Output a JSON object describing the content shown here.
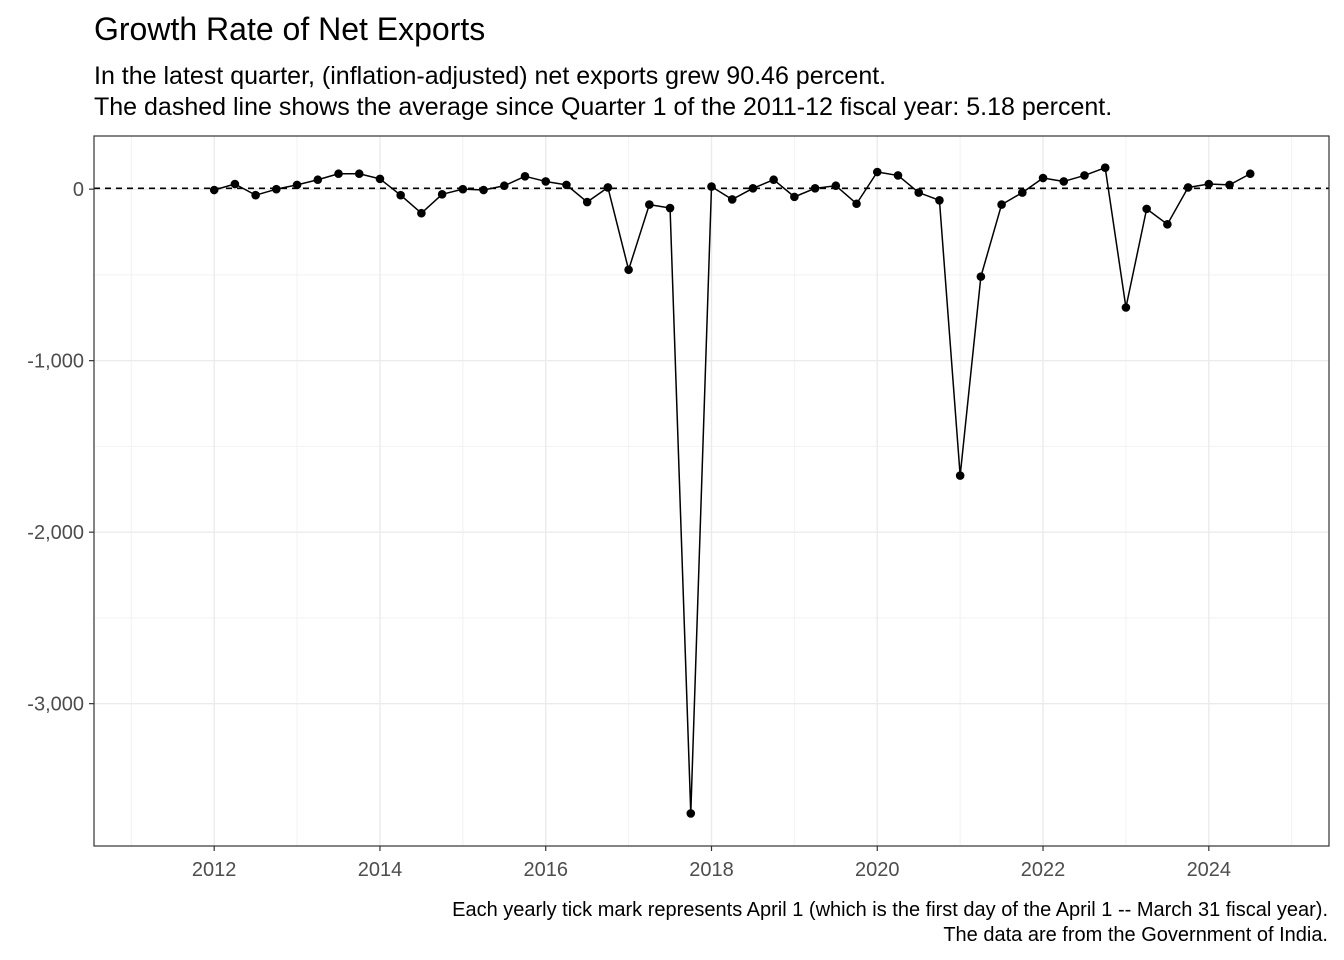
{
  "chart_data": {
    "type": "line",
    "title": "Growth Rate of Net Exports",
    "subtitle": [
      "In the latest quarter, (inflation-adjusted) net exports grew 90.46 percent.",
      "The dashed line shows the average since Quarter 1 of the 2011-12 fiscal year: 5.18 percent."
    ],
    "caption": [
      "Each yearly tick mark represents April 1 (which is the first day of the April 1 -- March 31 fiscal year).",
      "The data are from the Government of India."
    ],
    "xlabel": "",
    "ylabel": "",
    "x_ticks": [
      2012,
      2014,
      2016,
      2018,
      2020,
      2022,
      2024
    ],
    "y_ticks": [
      0,
      -1000,
      -2000,
      -3000
    ],
    "y_tick_labels": [
      "0",
      "-1,000",
      "-2,000",
      "-3,000"
    ],
    "xlim": [
      2010.55,
      2025.45
    ],
    "ylim": [
      -3830,
      310
    ],
    "average": 5.18,
    "grid": true,
    "legend": "none",
    "series": [
      {
        "x": [
          2012,
          2012.25,
          2012.5,
          2012.75,
          2013,
          2013.25,
          2013.5,
          2013.75,
          2014,
          2014.25,
          2014.5,
          2014.75,
          2015,
          2015.25,
          2015.5,
          2015.75,
          2016,
          2016.25,
          2016.5,
          2016.75,
          2017,
          2017.25,
          2017.5,
          2017.75,
          2018,
          2018.25,
          2018.5,
          2018.75,
          2019,
          2019.25,
          2019.5,
          2019.75,
          2020,
          2020.25,
          2020.5,
          2020.75,
          2021,
          2021.25,
          2021.5,
          2021.75,
          2022,
          2022.25,
          2022.5,
          2022.75,
          2023,
          2023.25,
          2023.5,
          2023.75,
          2024,
          2024.25,
          2024.5
        ],
        "y": [
          -5,
          30,
          -35,
          0,
          25,
          55,
          90,
          90,
          60,
          -35,
          -140,
          -30,
          0,
          -5,
          20,
          75,
          45,
          25,
          -75,
          10,
          -470,
          -90,
          -110,
          -3640,
          15,
          -60,
          5,
          55,
          -45,
          5,
          20,
          -85,
          100,
          80,
          -20,
          -65,
          -1670,
          -510,
          -90,
          -20,
          65,
          45,
          80,
          125,
          -690,
          -115,
          -205,
          10,
          30,
          25,
          90
        ]
      }
    ]
  }
}
